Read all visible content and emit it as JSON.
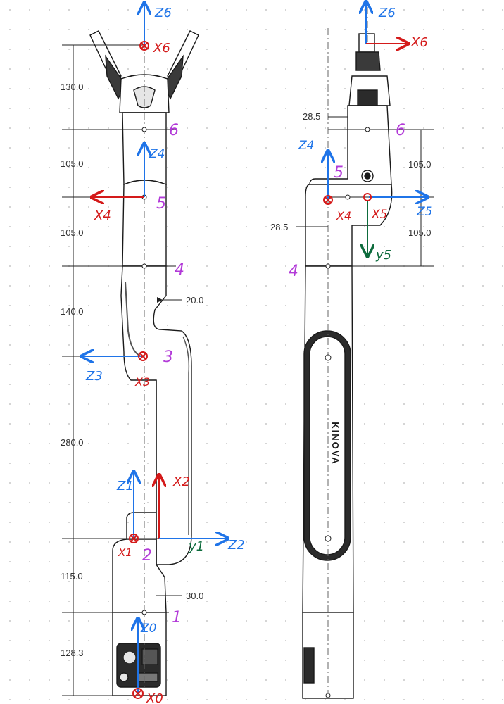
{
  "colors": {
    "dimension": "#222222",
    "body_fill": "#ffffff",
    "body_stroke": "#1a1a1a",
    "accent_dark": "#2b2b2b",
    "z_axis": "#1f74e8",
    "x_axis": "#d41a1a",
    "y_axis": "#0d6b3c",
    "joint_number": "#b23ad8",
    "grid_dot": "#c8c8c8"
  },
  "dimensions_left": {
    "d1": "130.0",
    "d2": "105.0",
    "d3": "105.0",
    "d4": "140.0",
    "d5": "280.0",
    "d6": "115.0",
    "d7": "128.3",
    "offset_a": "20.0",
    "offset_b": "30.0"
  },
  "dimensions_right": {
    "top_offset": "28.5",
    "mid_offset": "28.5",
    "d1": "105.0",
    "d2": "105.0"
  },
  "joint_numbers": {
    "j1": "1",
    "j2": "2",
    "j3": "3",
    "j4": "4",
    "j5": "5",
    "j6": "6",
    "j4_right": "4",
    "j5_right": "5",
    "j6_right": "6"
  },
  "axis_labels": {
    "z0": "Z0",
    "x0": "X0",
    "z1": "Z1",
    "x1": "X1",
    "y1": "y1",
    "z2": "Z2",
    "x2": "X2",
    "z3": "Z3",
    "x3": "X3",
    "z4": "Z4",
    "x4": "X4",
    "z6": "Z6",
    "x6": "X6",
    "z6_right": "Z6",
    "x6_right": "X6",
    "z4_right": "Z4",
    "x4_right": "X4",
    "x5": "X5",
    "z5": "Z5",
    "y5": "y5"
  },
  "brand_text": "KINOVA"
}
